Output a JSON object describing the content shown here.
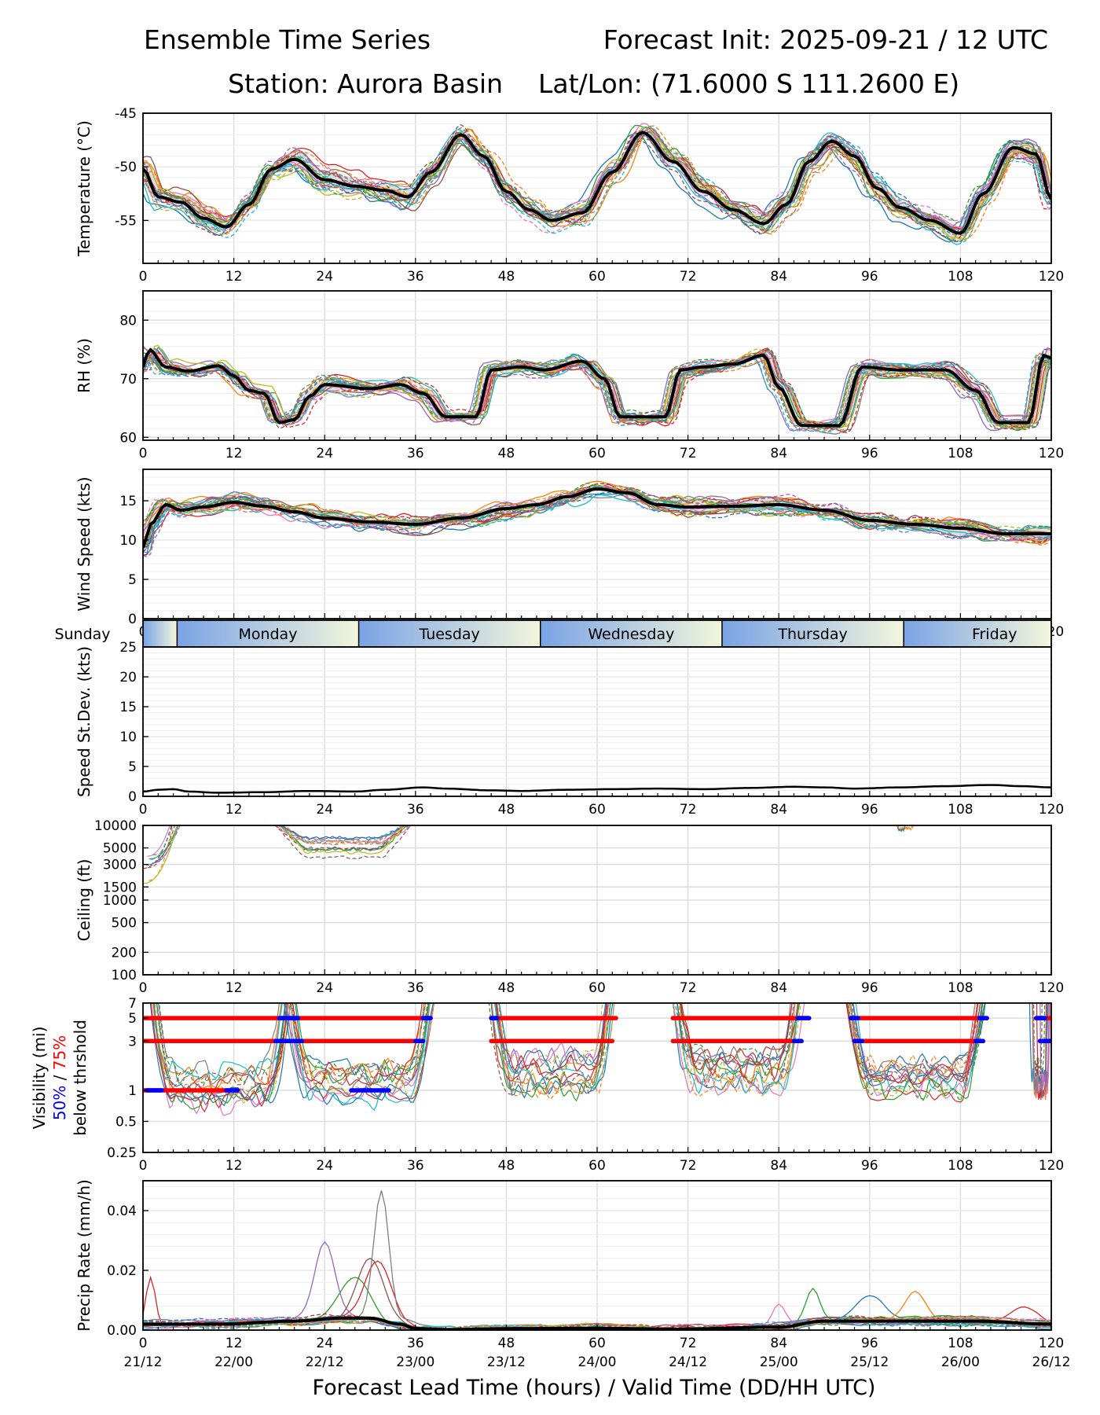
{
  "header": {
    "title_left": "Ensemble Time Series",
    "title_right": "Forecast Init: 2025-09-21 / 12 UTC",
    "station": "Station: Aurora Basin",
    "latlon": "Lat/Lon: (71.6000 S 111.2600 E)"
  },
  "footer": {
    "xlabel": "Forecast Lead Time (hours) / Valid Time (DD/HH UTC)"
  },
  "x_ticks": [
    "0",
    "12",
    "24",
    "36",
    "48",
    "60",
    "72",
    "84",
    "96",
    "108",
    "120"
  ],
  "valid_ticks": [
    "21/12",
    "22/00",
    "22/12",
    "23/00",
    "23/12",
    "24/00",
    "24/12",
    "25/00",
    "25/12",
    "26/00",
    "26/12"
  ],
  "days": {
    "labels": [
      "Sunday",
      "Monday",
      "Tuesday",
      "Wednesday",
      "Thursday",
      "Friday"
    ],
    "boundaries_h": [
      4.5,
      28.5,
      52.5,
      76.5,
      100.5
    ],
    "centers_h": [
      -2.5,
      16.5,
      40.5,
      64.5,
      88.5,
      112.5
    ]
  },
  "colors": {
    "mean": "#000000",
    "blue": "#0000ff",
    "red": "#ff0000",
    "band_start": "#7aa3e5",
    "band_end": "#f3f6dc",
    "members": [
      "#1f77b4",
      "#ff7f0e",
      "#2ca02c",
      "#d62728",
      "#9467bd",
      "#8c564b",
      "#e377c2",
      "#7f7f7f",
      "#bcbd22",
      "#17becf"
    ]
  },
  "chart_data": [
    {
      "id": "temperature",
      "type": "line",
      "ylabel": "Temperature (°C)",
      "ylim": [
        -59,
        -45
      ],
      "yticks": [
        "-45",
        "-50",
        "-55"
      ],
      "ytick_values": [
        -45,
        -50,
        -55
      ],
      "mean": [
        [
          0,
          -50.2
        ],
        [
          2,
          -52.8
        ],
        [
          5,
          -53.3
        ],
        [
          8,
          -54.8
        ],
        [
          11,
          -55.6
        ],
        [
          14,
          -53.5
        ],
        [
          17,
          -50.2
        ],
        [
          20,
          -49.3
        ],
        [
          24,
          -51.2
        ],
        [
          28,
          -51.8
        ],
        [
          32,
          -52.2
        ],
        [
          35,
          -52.8
        ],
        [
          38,
          -50.5
        ],
        [
          42,
          -47
        ],
        [
          45,
          -49
        ],
        [
          48,
          -52.3
        ],
        [
          51,
          -54
        ],
        [
          54,
          -55
        ],
        [
          58,
          -54.3
        ],
        [
          62,
          -50.5
        ],
        [
          66,
          -46.8
        ],
        [
          70,
          -49.5
        ],
        [
          74,
          -52.3
        ],
        [
          78,
          -54
        ],
        [
          82,
          -55.3
        ],
        [
          85,
          -53.5
        ],
        [
          88,
          -49.5
        ],
        [
          91,
          -47.6
        ],
        [
          94,
          -49
        ],
        [
          97,
          -52
        ],
        [
          100,
          -53.8
        ],
        [
          104,
          -55
        ],
        [
          108,
          -56.2
        ],
        [
          111,
          -52.5
        ],
        [
          115,
          -48.2
        ],
        [
          118,
          -48.8
        ],
        [
          120,
          -53
        ]
      ],
      "spread": 1.2,
      "member_count": 20,
      "shade": true
    },
    {
      "id": "rh",
      "type": "line",
      "ylabel": "RH (%)",
      "ylim": [
        59.5,
        85
      ],
      "yticks": [
        "60",
        "70",
        "80"
      ],
      "ytick_values": [
        60,
        70,
        80
      ],
      "mean": [
        [
          0,
          72
        ],
        [
          0.8,
          75
        ],
        [
          3,
          72
        ],
        [
          6,
          71.3
        ],
        [
          10,
          72.2
        ],
        [
          12,
          70.5
        ],
        [
          14,
          68
        ],
        [
          16,
          67.5
        ],
        [
          18,
          62.5
        ],
        [
          20,
          63
        ],
        [
          22,
          67
        ],
        [
          24,
          69
        ],
        [
          30,
          68.3
        ],
        [
          34,
          69
        ],
        [
          37,
          67.5
        ],
        [
          40,
          63.5
        ],
        [
          44,
          63.5
        ],
        [
          46,
          71.5
        ],
        [
          50,
          72
        ],
        [
          53,
          71.5
        ],
        [
          58,
          73
        ],
        [
          61,
          70
        ],
        [
          63,
          63.5
        ],
        [
          69,
          63.5
        ],
        [
          71,
          71.5
        ],
        [
          74,
          72
        ],
        [
          78,
          72.5
        ],
        [
          82,
          74
        ],
        [
          84,
          68.5
        ],
        [
          87,
          62
        ],
        [
          92,
          62
        ],
        [
          95,
          72
        ],
        [
          100,
          71.5
        ],
        [
          106,
          71.5
        ],
        [
          110,
          68
        ],
        [
          113,
          62.5
        ],
        [
          117,
          62.5
        ],
        [
          119,
          74
        ],
        [
          120,
          73.5
        ]
      ],
      "spread": 1.4,
      "member_count": 20,
      "shade": true
    },
    {
      "id": "wind",
      "type": "line",
      "ylabel": "Wind Speed (kts)",
      "ylim": [
        0,
        19
      ],
      "yticks": [
        "0",
        "5",
        "10",
        "15"
      ],
      "ytick_values": [
        0,
        5,
        10,
        15
      ],
      "mean": [
        [
          0,
          9
        ],
        [
          1,
          12
        ],
        [
          3,
          14.5
        ],
        [
          5,
          13.8
        ],
        [
          8,
          14.2
        ],
        [
          12,
          14.8
        ],
        [
          16,
          14.3
        ],
        [
          20,
          13.6
        ],
        [
          24,
          12.8
        ],
        [
          30,
          12.3
        ],
        [
          36,
          12
        ],
        [
          42,
          12.8
        ],
        [
          48,
          14
        ],
        [
          52,
          14.5
        ],
        [
          56,
          15.5
        ],
        [
          60,
          16.5
        ],
        [
          64,
          16
        ],
        [
          68,
          14.5
        ],
        [
          72,
          14.2
        ],
        [
          78,
          14.3
        ],
        [
          84,
          14.5
        ],
        [
          90,
          13.8
        ],
        [
          96,
          12.5
        ],
        [
          102,
          12
        ],
        [
          108,
          11.5
        ],
        [
          114,
          10.8
        ],
        [
          120,
          10.8
        ]
      ],
      "spread": 1.2,
      "member_count": 20,
      "shade": true
    },
    {
      "id": "speed_stdev",
      "type": "line",
      "ylabel": "Speed St.Dev. (kts)",
      "ylim": [
        0,
        25
      ],
      "yticks": [
        "0",
        "5",
        "10",
        "15",
        "20",
        "25"
      ],
      "ytick_values": [
        0,
        5,
        10,
        15,
        20,
        25
      ],
      "mean": [
        [
          0,
          0.8
        ],
        [
          2,
          1.1
        ],
        [
          4,
          1.2
        ],
        [
          6,
          0.8
        ],
        [
          10,
          0.6
        ],
        [
          16,
          0.7
        ],
        [
          22,
          0.9
        ],
        [
          28,
          0.8
        ],
        [
          32,
          1.1
        ],
        [
          37,
          1.5
        ],
        [
          40,
          1.3
        ],
        [
          46,
          1
        ],
        [
          50,
          0.9
        ],
        [
          56,
          1.1
        ],
        [
          62,
          1.2
        ],
        [
          68,
          1.3
        ],
        [
          74,
          1.2
        ],
        [
          80,
          1.4
        ],
        [
          86,
          1.6
        ],
        [
          90,
          1.5
        ],
        [
          94,
          1.3
        ],
        [
          100,
          1.5
        ],
        [
          106,
          1.7
        ],
        [
          112,
          1.9
        ],
        [
          116,
          1.7
        ],
        [
          120,
          1.5
        ]
      ],
      "spread": 0,
      "member_count": 0,
      "shade": false
    },
    {
      "id": "ceiling",
      "type": "line",
      "ylabel": "Ceiling (ft)",
      "ylim": [
        100,
        10000
      ],
      "log": true,
      "yticks": [
        "100",
        "200",
        "500",
        "1000",
        "1500",
        "3000",
        "5000",
        "10000"
      ],
      "ytick_values": [
        100,
        200,
        500,
        1000,
        1500,
        3000,
        5000,
        10000
      ],
      "segments": [
        {
          "start": 0,
          "end": 5,
          "shape": "drop",
          "min_val": 1400,
          "count": 10
        },
        {
          "start": 17,
          "end": 36,
          "shape": "dip",
          "min_val": 3000,
          "count": 12
        },
        {
          "start": 99,
          "end": 102,
          "shape": "dip",
          "min_val": 8500,
          "count": 2
        }
      ]
    },
    {
      "id": "visibility",
      "type": "line",
      "ylabel_lines": [
        "Visibility (mi)",
        "50% / 75%",
        "below thrshold"
      ],
      "ylabel_pct50": "50%",
      "ylabel_sep": " / ",
      "ylabel_pct75": "75%",
      "ylim": [
        0.25,
        7
      ],
      "log": true,
      "yticks": [
        "0.25",
        "0.5",
        "1",
        "3",
        "5",
        "7"
      ],
      "ytick_values": [
        0.25,
        0.5,
        1,
        3,
        5,
        7
      ],
      "segments": [
        {
          "start": 0,
          "end": 20,
          "center": 1.0,
          "count": 14
        },
        {
          "start": 18,
          "end": 39,
          "center": 1.1,
          "count": 14
        },
        {
          "start": 45,
          "end": 63,
          "center": 1.5,
          "count": 14
        },
        {
          "start": 69,
          "end": 88,
          "center": 1.5,
          "count": 14
        },
        {
          "start": 92,
          "end": 112,
          "center": 1.2,
          "count": 16
        },
        {
          "start": 117,
          "end": 120,
          "center": 1.5,
          "count": 8
        }
      ],
      "threshold_bars": [
        {
          "level": 5,
          "color": "red",
          "ranges": [
            [
              0,
              38
            ],
            [
              46,
              62.5
            ],
            [
              70,
              88
            ],
            [
              93.5,
              111.5
            ],
            [
              118,
              120
            ]
          ]
        },
        {
          "level": 5,
          "color": "blue",
          "ranges": [
            [
              18,
              20.5
            ],
            [
              37,
              38
            ],
            [
              46,
              46.8
            ],
            [
              86.5,
              88
            ],
            [
              93.5,
              94.5
            ],
            [
              110.5,
              111.5
            ],
            [
              118,
              119.2
            ]
          ]
        },
        {
          "level": 3,
          "color": "red",
          "ranges": [
            [
              0,
              37
            ],
            [
              46,
              62
            ],
            [
              70,
              87
            ],
            [
              94,
              111
            ],
            [
              118.5,
              120
            ]
          ]
        },
        {
          "level": 3,
          "color": "blue",
          "ranges": [
            [
              17.5,
              21
            ],
            [
              36,
              37
            ],
            [
              86,
              87
            ],
            [
              94,
              95
            ],
            [
              110,
              111
            ],
            [
              118.5,
              120
            ]
          ]
        },
        {
          "level": 1,
          "color": "red",
          "ranges": [
            [
              0,
              12.5
            ]
          ]
        },
        {
          "level": 1,
          "color": "blue",
          "ranges": [
            [
              0.5,
              2.5
            ],
            [
              11,
              12.5
            ],
            [
              27.5,
              32.5
            ]
          ]
        }
      ]
    },
    {
      "id": "precip",
      "type": "line",
      "ylabel": "Precip Rate (mm/h)",
      "ylim": [
        0,
        0.05
      ],
      "yticks": [
        "0.00",
        "0.02",
        "0.04"
      ],
      "ytick_values": [
        0,
        0.02,
        0.04
      ],
      "mean": [
        [
          0,
          0.002
        ],
        [
          10,
          0.002
        ],
        [
          20,
          0.003
        ],
        [
          26,
          0.004
        ],
        [
          30,
          0.004
        ],
        [
          34,
          0.002
        ],
        [
          36,
          0.0005
        ],
        [
          40,
          0.0002
        ],
        [
          50,
          0.0005
        ],
        [
          60,
          0.0006
        ],
        [
          70,
          0.0003
        ],
        [
          84,
          0.001
        ],
        [
          90,
          0.003
        ],
        [
          100,
          0.003
        ],
        [
          110,
          0.003
        ],
        [
          120,
          0.002
        ]
      ],
      "peaks": [
        {
          "h": 31.5,
          "v": 0.042,
          "w": 1.4,
          "member": 7
        },
        {
          "h": 30.0,
          "v": 0.021,
          "w": 2.5,
          "member": 5
        },
        {
          "h": 24.0,
          "v": 0.025,
          "w": 1.8,
          "member": 4
        },
        {
          "h": 31.0,
          "v": 0.019,
          "w": 2.5,
          "member": 3
        },
        {
          "h": 28.0,
          "v": 0.014,
          "w": 3.0,
          "member": 2
        },
        {
          "h": 1.0,
          "v": 0.017,
          "w": 0.9,
          "member": 3
        },
        {
          "h": 88.5,
          "v": 0.011,
          "w": 1.2,
          "member": 2
        },
        {
          "h": 84.0,
          "v": 0.007,
          "w": 1.2,
          "member": 6
        },
        {
          "h": 102.0,
          "v": 0.01,
          "w": 2.0,
          "member": 1
        },
        {
          "h": 96.0,
          "v": 0.008,
          "w": 2.5,
          "member": 0
        },
        {
          "h": 116.5,
          "v": 0.006,
          "w": 2.5,
          "member": 3
        }
      ],
      "spread": 0.0015,
      "member_count": 20,
      "shade": false,
      "nonneg": true
    }
  ]
}
